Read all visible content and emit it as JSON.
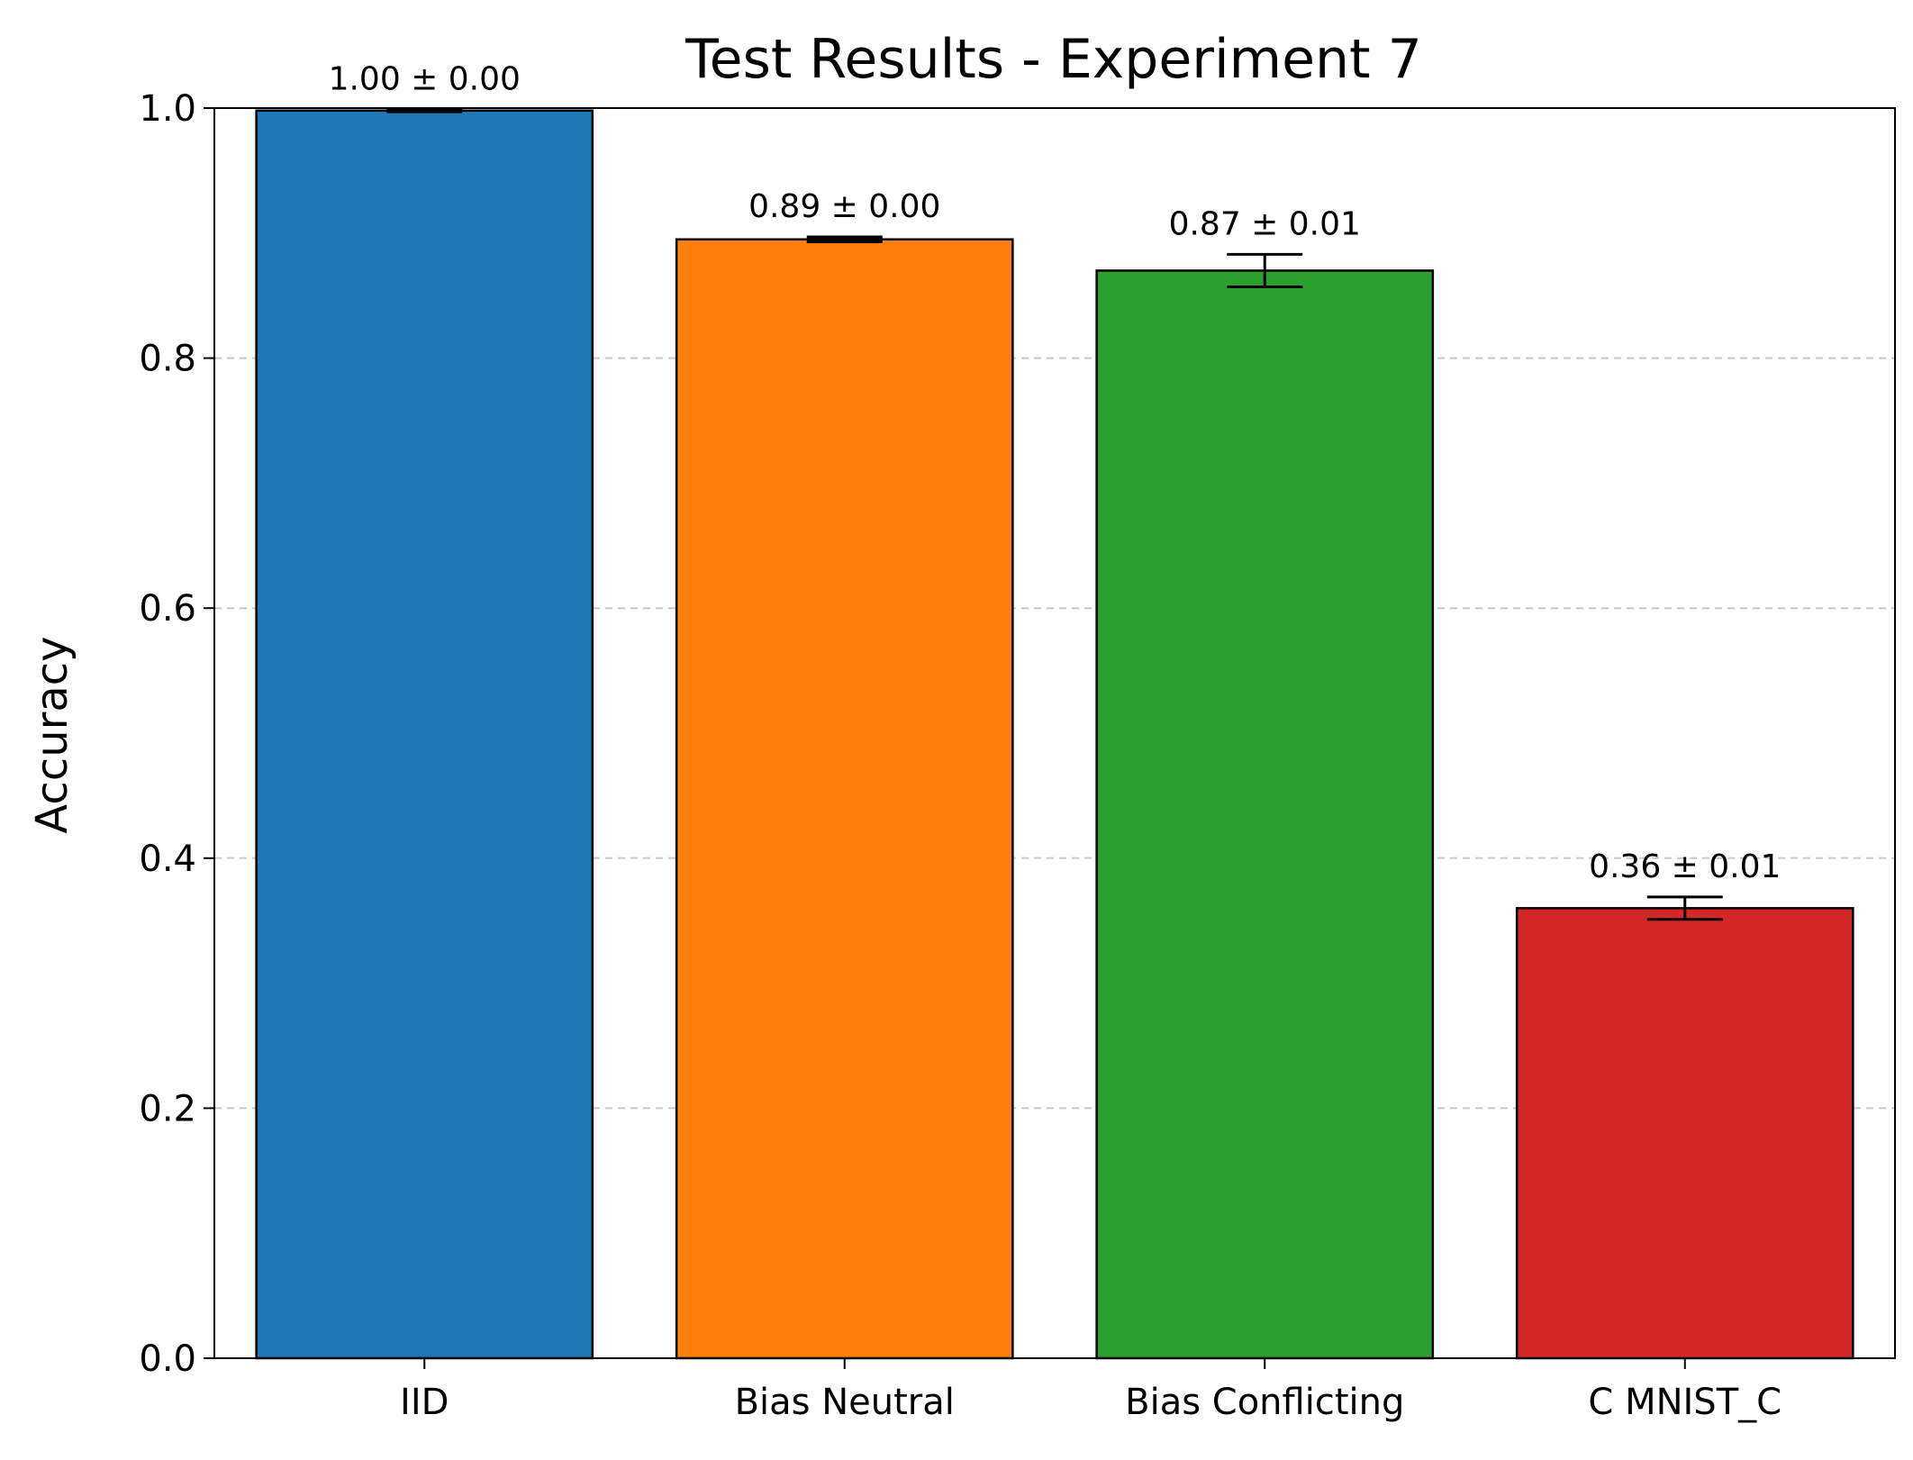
{
  "chart_data": {
    "type": "bar",
    "title": "Test Results - Experiment 7",
    "xlabel": "",
    "ylabel": "Accuracy",
    "ylim": [
      0,
      1.0
    ],
    "yticks": [
      "0.0",
      "0.2",
      "0.4",
      "0.6",
      "0.8",
      "1.0"
    ],
    "ytick_values": [
      0,
      0.2,
      0.4,
      0.6,
      0.8,
      1.0
    ],
    "grid": "y-dashed",
    "categories": [
      "IID",
      "Bias Neutral",
      "Bias Conflicting",
      "C MNIST_C"
    ],
    "values": [
      0.998,
      0.895,
      0.87,
      0.36
    ],
    "errors": [
      0.001,
      0.002,
      0.013,
      0.009
    ],
    "value_labels": [
      "1.00 ± 0.00",
      "0.89 ± 0.00",
      "0.87 ± 0.01",
      "0.36 ± 0.01"
    ],
    "colors": [
      "#1f77b4",
      "#ff7f0e",
      "#2ca02c",
      "#d62728"
    ]
  }
}
